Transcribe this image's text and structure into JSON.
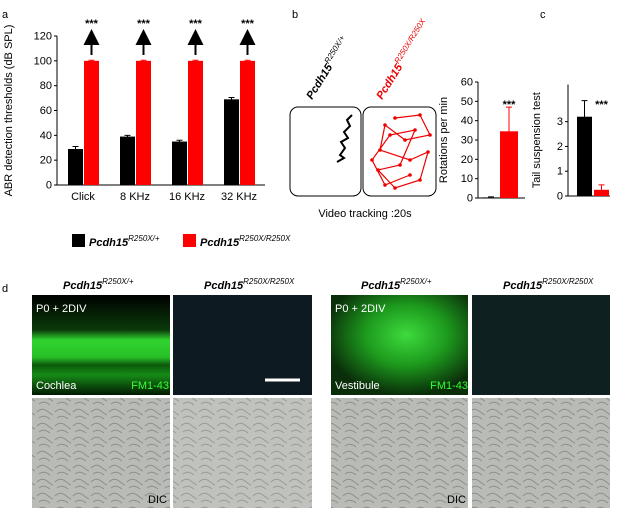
{
  "panel_labels": [
    "a",
    "b",
    "c",
    "d"
  ],
  "chart_data": [
    {
      "type": "bar",
      "y_label": "ABR detection thresholds (dB SPL)",
      "categories": [
        "Click",
        "8 KHz",
        "16 KHz",
        "32 KHz"
      ],
      "series": [
        {
          "name": "Pcdh15",
          "name_sup": "R250X/+",
          "color": "#000000",
          "values": [
            29,
            39,
            35,
            69
          ],
          "errors": [
            2,
            1,
            1,
            1.5
          ]
        },
        {
          "name": "Pcdh15",
          "name_sup": "R250X/R250X",
          "color": "#ff0000",
          "values": [
            100,
            100,
            100,
            100
          ],
          "errors": [
            0.5,
            0.5,
            0.5,
            0.5
          ]
        }
      ],
      "ylim": [
        0,
        120
      ],
      "yticks": [
        0,
        20,
        40,
        60,
        80,
        100,
        120
      ],
      "annotations": [
        "***",
        "***",
        "***",
        "***"
      ]
    },
    {
      "type": "bar",
      "y_label": "Rotations per min",
      "values": [
        0.3,
        34.5
      ],
      "errors": [
        0.3,
        12.5
      ],
      "colors": [
        "#000000",
        "#ff0000"
      ],
      "ylim": [
        0,
        60
      ],
      "yticks": [
        0,
        10,
        20,
        30,
        40,
        50,
        60
      ],
      "annotation": "***"
    },
    {
      "type": "bar",
      "y_label": "Tail suspension test",
      "values": [
        3.2,
        0.25
      ],
      "errors": [
        0.65,
        0.2
      ],
      "colors": [
        "#000000",
        "#ff0000"
      ],
      "ylim": [
        0,
        4.5
      ],
      "yticks": [
        0,
        1,
        2,
        3
      ],
      "annotation": "***"
    }
  ],
  "tracking": {
    "labels": [
      {
        "base": "Pcdh15",
        "sup": "R250X/+"
      },
      {
        "base": "Pcdh15",
        "sup": "R250X/R250X"
      }
    ],
    "caption": "Video tracking :20s"
  },
  "micrographs": {
    "columns": [
      {
        "base": "Pcdh15",
        "sup": "R250X/+"
      },
      {
        "base": "Pcdh15",
        "sup": "R250X/R250X"
      },
      {
        "base": "Pcdh15",
        "sup": "R250X/+"
      },
      {
        "base": "Pcdh15",
        "sup": "R250X/R250X"
      }
    ],
    "condition": [
      "P0 + 2DIV",
      "P0 + 2DIV"
    ],
    "tissue": [
      "Cochlea",
      "Vestibule"
    ],
    "dye": [
      "FM1-43",
      "FM1-43"
    ],
    "dic": [
      "DIC",
      "DIC"
    ]
  }
}
